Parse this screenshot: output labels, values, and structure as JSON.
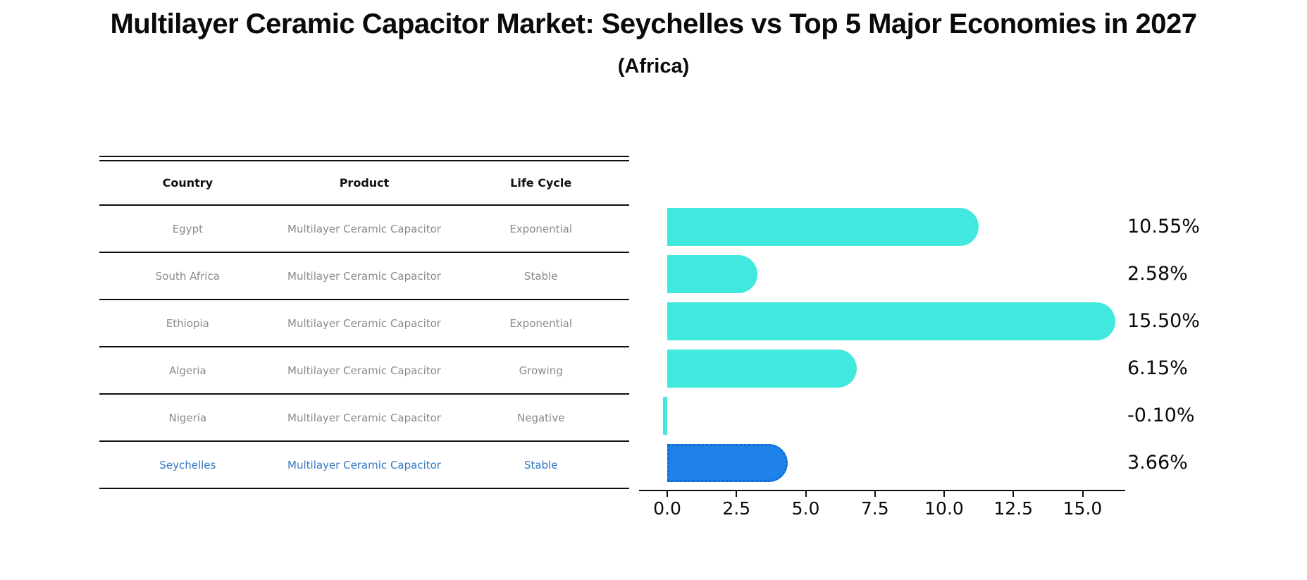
{
  "title": "Multilayer Ceramic Capacitor Market: Seychelles vs Top 5 Major Economies in 2027",
  "subtitle": "(Africa)",
  "table": {
    "headers": [
      "Country",
      "Product",
      "Life Cycle"
    ],
    "rows": [
      {
        "country": "Egypt",
        "product": "Multilayer Ceramic Capacitor",
        "life_cycle": "Exponential",
        "highlight": false
      },
      {
        "country": "South Africa",
        "product": "Multilayer Ceramic Capacitor",
        "life_cycle": "Stable",
        "highlight": false
      },
      {
        "country": "Ethiopia",
        "product": "Multilayer Ceramic Capacitor",
        "life_cycle": "Exponential",
        "highlight": false
      },
      {
        "country": "Algeria",
        "product": "Multilayer Ceramic Capacitor",
        "life_cycle": "Growing",
        "highlight": false
      },
      {
        "country": "Nigeria",
        "product": "Multilayer Ceramic Capacitor",
        "life_cycle": "Negative",
        "highlight": false
      },
      {
        "country": "Seychelles",
        "product": "Multilayer Ceramic Capacitor",
        "life_cycle": "Stable",
        "highlight": true
      }
    ]
  },
  "chart_data": {
    "type": "bar",
    "orientation": "horizontal",
    "categories": [
      "Egypt",
      "South Africa",
      "Ethiopia",
      "Algeria",
      "Nigeria",
      "Seychelles"
    ],
    "values": [
      10.55,
      2.58,
      15.5,
      6.15,
      -0.1,
      3.66
    ],
    "value_labels": [
      "10.55%",
      "2.58%",
      "15.50%",
      "6.15%",
      "-0.10%",
      "3.66%"
    ],
    "highlight_index": 5,
    "x_ticks": [
      {
        "value": 0,
        "label": "0.0"
      },
      {
        "value": 2.5,
        "label": "2.5"
      },
      {
        "value": 5,
        "label": "5.0"
      },
      {
        "value": 7.5,
        "label": "7.5"
      },
      {
        "value": 10,
        "label": "10.0"
      },
      {
        "value": 12.5,
        "label": "12.5"
      },
      {
        "value": 15,
        "label": "15.0"
      }
    ],
    "xlim": [
      -1.0,
      16.5
    ],
    "grid": false,
    "legend": false,
    "title": "Multilayer Ceramic Capacitor Market: Seychelles vs Top 5 Major Economies in 2027",
    "subtitle": "(Africa)",
    "xlabel": "",
    "ylabel": ""
  },
  "colors": {
    "bar": "#40E8DE",
    "highlight_bar": "#1E82E8",
    "highlight_border": "#1668cf",
    "highlight_text": "#3379c4",
    "row_text": "#8a8a8a",
    "axis": "#0f0f0f"
  }
}
